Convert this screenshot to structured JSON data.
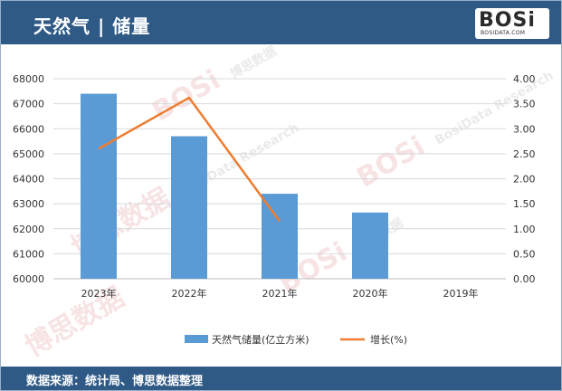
{
  "header": {
    "title": "天然气 | 储量"
  },
  "logo": {
    "text": "BOSi",
    "sub": "BOSIDATA.COM"
  },
  "footer": {
    "source": "数据来源：统计局、博思数据整理"
  },
  "watermark": {
    "brand": "BOSi",
    "cn": "博思数据",
    "en": "BosiData Research"
  },
  "colors": {
    "header_bg": "#2f5a86",
    "bar": "#5b9bd5",
    "line": "#ed7d31"
  },
  "chart_data": {
    "type": "bar",
    "categories": [
      "2023年",
      "2022年",
      "2021年",
      "2020年",
      "2019年"
    ],
    "series": [
      {
        "name": "天然气储量(亿立方米)",
        "type": "bar",
        "axis": "left",
        "values": [
          67400,
          65700,
          63400,
          62650,
          null
        ]
      },
      {
        "name": "增长(%)",
        "type": "line",
        "axis": "right",
        "values": [
          2.6,
          3.62,
          1.15,
          null,
          null
        ]
      }
    ],
    "y_left": {
      "min": 60000,
      "max": 68000,
      "ticks": [
        "60000",
        "61000",
        "62000",
        "63000",
        "64000",
        "65000",
        "66000",
        "67000",
        "68000"
      ]
    },
    "y_right": {
      "min": 0,
      "max": 4,
      "ticks": [
        "0.00",
        "0.50",
        "1.00",
        "1.50",
        "2.00",
        "2.50",
        "3.00",
        "3.50",
        "4.00"
      ]
    },
    "grid": true,
    "legend_position": "bottom"
  }
}
